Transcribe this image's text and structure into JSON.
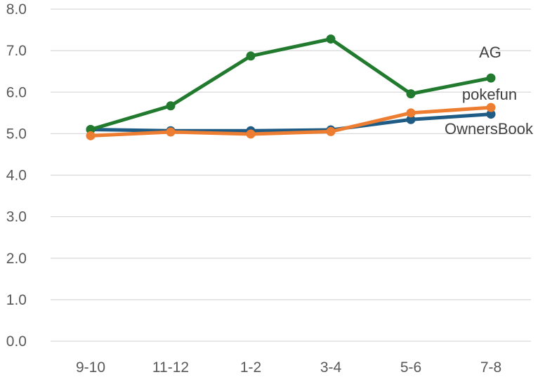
{
  "chart_data": {
    "type": "line",
    "title": "",
    "xlabel": "",
    "ylabel": "",
    "categories": [
      "9-10",
      "11-12",
      "1-2",
      "3-4",
      "5-6",
      "7-8"
    ],
    "ylim": [
      0,
      8
    ],
    "yticks": [
      "0.0",
      "1.0",
      "2.0",
      "3.0",
      "4.0",
      "5.0",
      "6.0",
      "7.0",
      "8.0"
    ],
    "grid": true,
    "legend": "direct labels at line ends",
    "series": [
      {
        "name": "OwnersBook",
        "color": "#1f5c85",
        "values": [
          5.1,
          5.07,
          5.07,
          5.09,
          5.34,
          5.47
        ]
      },
      {
        "name": "AG",
        "color": "#217a2e",
        "values": [
          5.1,
          5.67,
          6.87,
          7.28,
          5.96,
          6.34
        ]
      },
      {
        "name": "pokefun",
        "color": "#ed7d31",
        "values": [
          4.95,
          5.04,
          4.99,
          5.05,
          5.5,
          5.63
        ]
      }
    ]
  }
}
